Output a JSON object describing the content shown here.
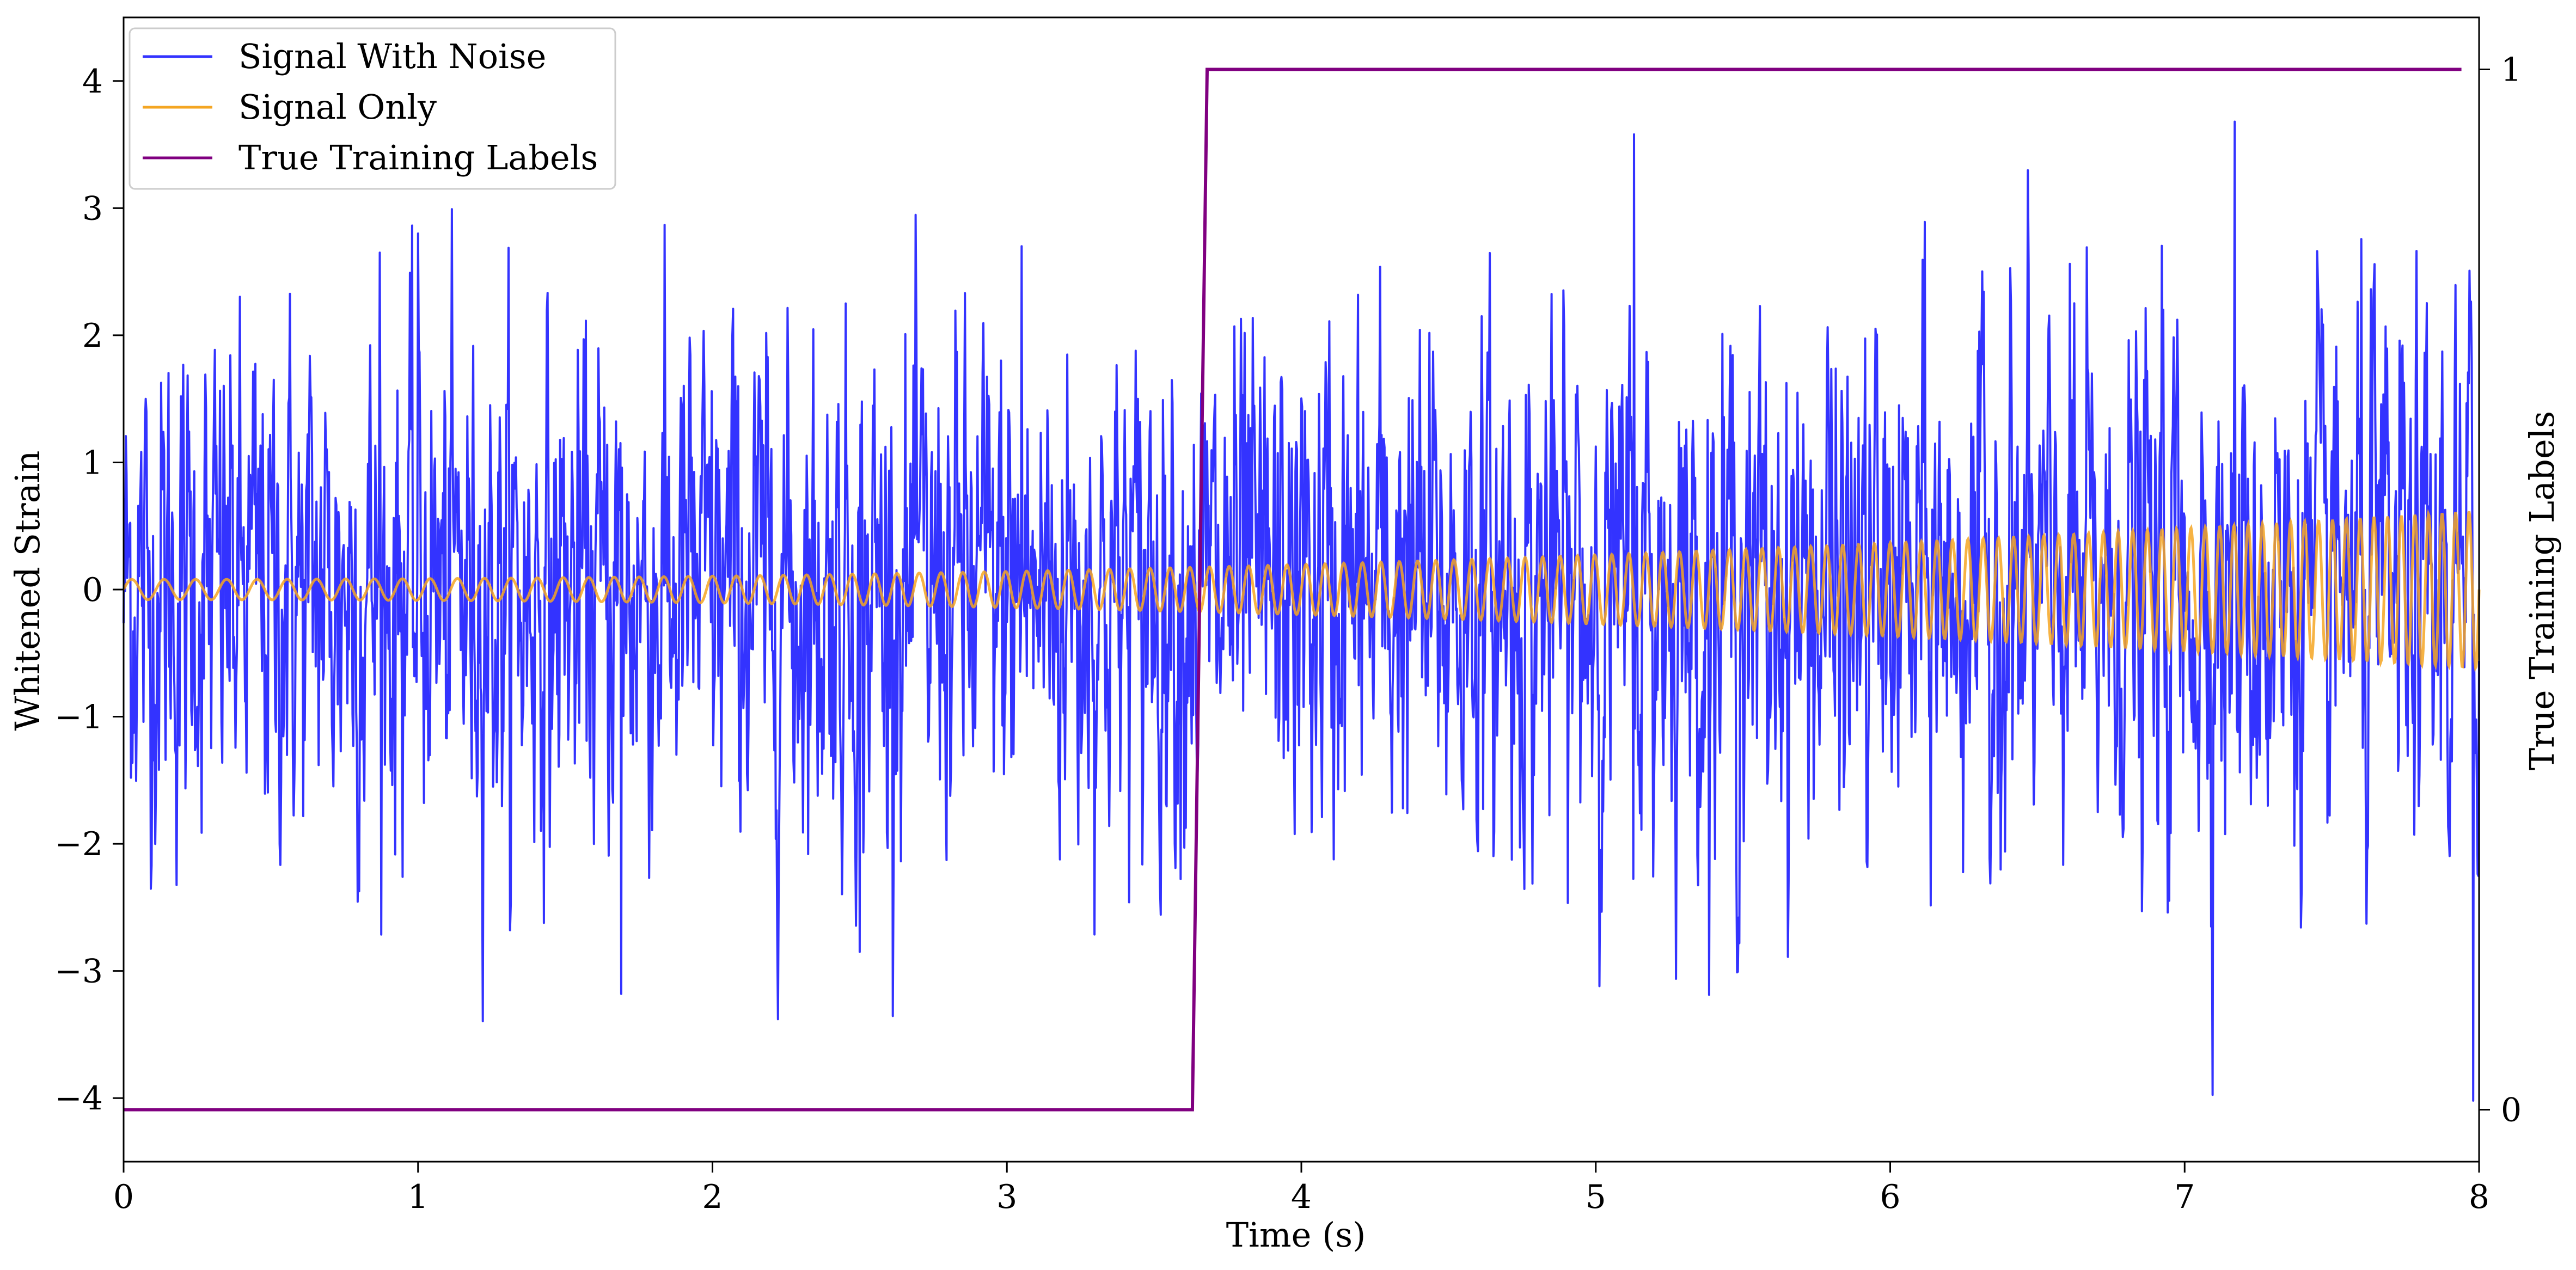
{
  "chart_data": {
    "type": "line",
    "xlabel": "Time (s)",
    "ylabel": "Whitened Strain",
    "y2label": "True Training Labels",
    "xlim": [
      0,
      8
    ],
    "ylim": [
      -4.5,
      4.5
    ],
    "y2lim": [
      -0.05,
      1.05
    ],
    "xticks": [
      "0",
      "1",
      "2",
      "3",
      "4",
      "5",
      "6",
      "7",
      "8"
    ],
    "yticks": [
      "−4",
      "−3",
      "−2",
      "−1",
      "0",
      "1",
      "2",
      "3",
      "4"
    ],
    "y2ticks": [
      "0",
      "1"
    ],
    "legend_position": "top-left",
    "colors": {
      "signal_with_noise": "#3333ff",
      "signal_only": "#f4a623",
      "true_labels": "#800080"
    },
    "series": [
      {
        "name": "Signal With Noise",
        "axis": "left",
        "description_values": "noisy whitened strain, roughly gaussian, std ~0.85, max ~3.7, min ~-4.0",
        "peaks": [
          {
            "x": 0.87,
            "y": 2.65
          },
          {
            "x": 1.0,
            "y": 2.8
          },
          {
            "x": 1.69,
            "y": -3.18
          },
          {
            "x": 2.5,
            "y": -2.85
          },
          {
            "x": 3.05,
            "y": 2.7
          },
          {
            "x": 5.13,
            "y": 3.58
          },
          {
            "x": 7.17,
            "y": 3.68
          },
          {
            "x": 7.98,
            "y": -4.02
          }
        ]
      },
      {
        "name": "Signal Only",
        "axis": "left",
        "chirp": {
          "amp_start": 0.08,
          "amp_end": 0.62,
          "freq_start_hz": 9,
          "freq_end_hz": 22
        }
      },
      {
        "name": "True Training Labels",
        "axis": "right",
        "x": [
          0,
          3.63,
          3.68,
          7.94
        ],
        "y": [
          0,
          0,
          1,
          1
        ]
      }
    ]
  }
}
